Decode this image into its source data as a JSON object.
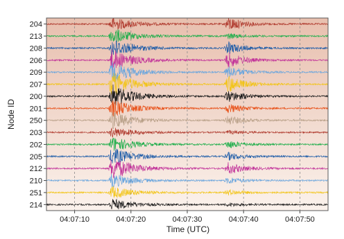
{
  "chart_data": {
    "type": "line",
    "ylabel": "Node ID",
    "xlabel": "Time (UTC)",
    "x_ticks": [
      "04:07:10",
      "04:07:20",
      "04:07:30",
      "04:07:40",
      "04:07:50"
    ],
    "x_tick_seconds": [
      10,
      20,
      30,
      40,
      50
    ],
    "xlim_seconds": [
      5,
      55
    ],
    "grid": "vertical dashed",
    "background_gradient": [
      "#e8bfae",
      "#f2dbd0",
      "#fbf2ec"
    ],
    "series": [
      {
        "name": "204",
        "color": "#b03a2e",
        "main_amp": 0.55,
        "late_amp": 0.55
      },
      {
        "name": "213",
        "color": "#1fae4b",
        "main_amp": 0.65,
        "late_amp": 0.2
      },
      {
        "name": "208",
        "color": "#1a5aa8",
        "main_amp": 0.75,
        "late_amp": 0.45
      },
      {
        "name": "206",
        "color": "#c2349a",
        "main_amp": 0.85,
        "late_amp": 0.6
      },
      {
        "name": "209",
        "color": "#6aa6de",
        "main_amp": 0.85,
        "late_amp": 0.5
      },
      {
        "name": "207",
        "color": "#f2c416",
        "main_amp": 1.0,
        "late_amp": 0.7
      },
      {
        "name": "200",
        "color": "#1a1a1a",
        "main_amp": 0.95,
        "late_amp": 0.45
      },
      {
        "name": "201",
        "color": "#e8521a",
        "main_amp": 0.7,
        "late_amp": 0.35
      },
      {
        "name": "250",
        "color": "#b8a088",
        "main_amp": 0.7,
        "late_amp": 0.35
      },
      {
        "name": "203",
        "color": "#b03a2e",
        "main_amp": 0.4,
        "late_amp": 0.12
      },
      {
        "name": "202",
        "color": "#1fae4b",
        "main_amp": 0.6,
        "late_amp": 0.3
      },
      {
        "name": "205",
        "color": "#1a5aa8",
        "main_amp": 0.7,
        "late_amp": 0.3
      },
      {
        "name": "212",
        "color": "#c2349a",
        "main_amp": 0.95,
        "late_amp": 0.45
      },
      {
        "name": "210",
        "color": "#6aa6de",
        "main_amp": 0.55,
        "late_amp": 0.25
      },
      {
        "name": "251",
        "color": "#f2c416",
        "main_amp": 0.5,
        "late_amp": 0.2
      },
      {
        "name": "214",
        "color": "#1a1a1a",
        "main_amp": 0.45,
        "late_amp": 0.12
      }
    ],
    "event_onsets_seconds": [
      16.0,
      36.5
    ]
  }
}
